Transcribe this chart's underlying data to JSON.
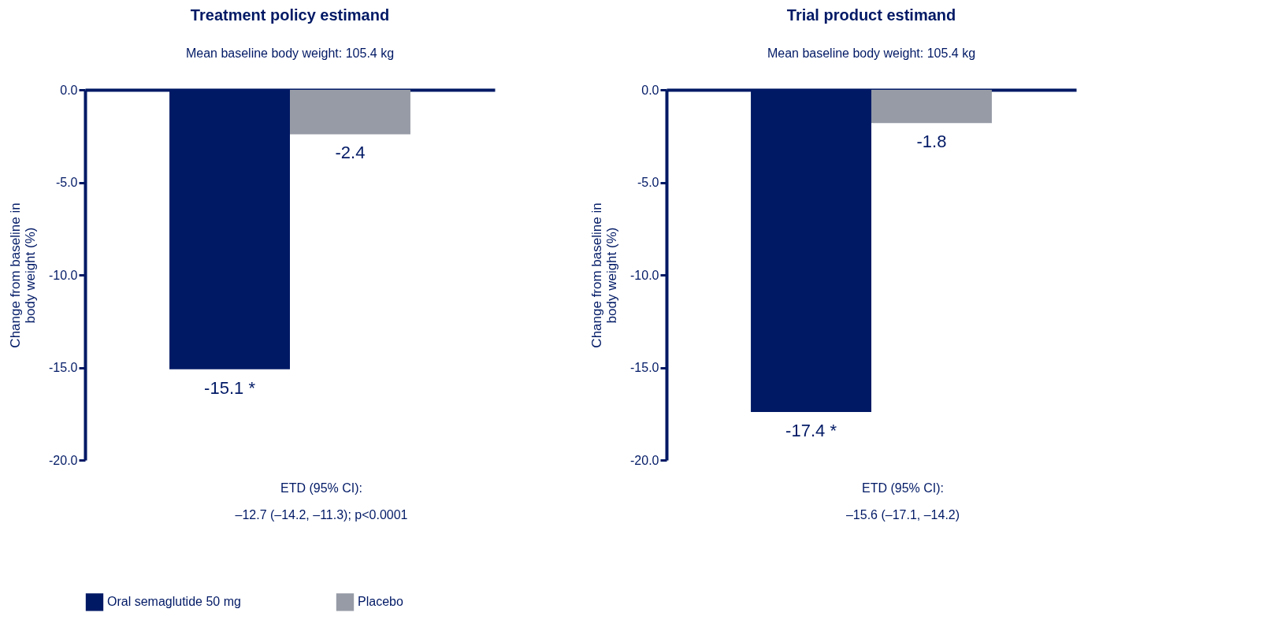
{
  "chart_data": [
    {
      "type": "bar",
      "title": "Treatment policy estimand",
      "subtitle": "Mean baseline body weight: 105.4 kg",
      "ylabel": "Change from baseline in body weight (%)",
      "categories": [
        null
      ],
      "series": [
        {
          "name": "Oral semaglutide 50 mg",
          "color": "#001965",
          "values": [
            -15.1
          ],
          "value_labels": [
            "-15.1 *"
          ]
        },
        {
          "name": "Placebo",
          "color": "#969ba6",
          "values": [
            -2.4
          ],
          "value_labels": [
            "-2.4"
          ]
        }
      ],
      "ylim": [
        -20,
        0
      ],
      "yticks": [
        {
          "value": 0,
          "label": "0.0"
        },
        {
          "value": -5,
          "label": "-5.0"
        },
        {
          "value": -10,
          "label": "-10.0"
        },
        {
          "value": -15,
          "label": "-15.0"
        },
        {
          "value": -20,
          "label": "-20.0"
        }
      ],
      "annotations": [
        "ETD (95% CI):",
        "–12.7 (–14.2, –11.3); p<0.0001"
      ],
      "grid": false,
      "legend": "bottom",
      "tick_labels": "y"
    },
    {
      "type": "bar",
      "title": "Trial product estimand",
      "subtitle": "Mean baseline body weight: 105.4 kg",
      "ylabel": "Change from baseline in body weight (%)",
      "categories": [
        null
      ],
      "series": [
        {
          "name": "Oral semaglutide 50 mg",
          "color": "#001965",
          "values": [
            -17.4
          ],
          "value_labels": [
            "-17.4 *"
          ]
        },
        {
          "name": "Placebo",
          "color": "#969ba6",
          "values": [
            -1.8
          ],
          "value_labels": [
            "-1.8"
          ]
        }
      ],
      "ylim": [
        -20,
        0
      ],
      "yticks": [
        {
          "value": 0,
          "label": "0.0"
        },
        {
          "value": -5,
          "label": "-5.0"
        },
        {
          "value": -10,
          "label": "-10.0"
        },
        {
          "value": -15,
          "label": "-15.0"
        },
        {
          "value": -20,
          "label": "-20.0"
        }
      ],
      "annotations": [
        "ETD (95% CI):",
        "–15.6 (–17.1, –14.2)"
      ],
      "grid": false,
      "legend": "bottom",
      "tick_labels": "y"
    }
  ]
}
